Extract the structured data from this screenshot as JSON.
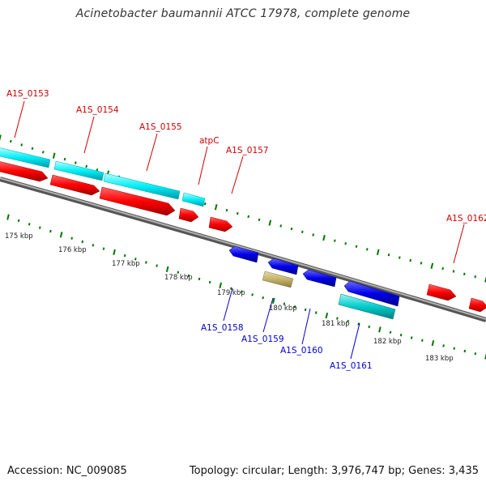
{
  "title": "Acinetobacter baumannii ATCC 17978, complete genome",
  "footer": {
    "accession": "Accession: NC_009085",
    "topology": "Topology: circular; Length: 3,976,747 bp; Genes: 3,435"
  },
  "colors": {
    "plus_cds": "#ff0000",
    "plus_rna": "#00e8f0",
    "minus_cds": "#0000e0",
    "minus_rna": "#00c8c8",
    "pseudo": "#c8b870",
    "plus_label": "#cc0000",
    "minus_label": "#0000cc",
    "tick": "#007700",
    "backbone": "#8c8c8c"
  },
  "scale_labels": [
    "175 kbp",
    "176 kbp",
    "177 kbp",
    "178 kbp",
    "179 kbp",
    "180 kbp",
    "181 kbp",
    "182 kbp",
    "183 kbp"
  ],
  "plus_genes": [
    "A1S_0153",
    "A1S_0154",
    "A1S_0155",
    "atpC",
    "A1S_0157",
    "A1S_0162"
  ],
  "minus_genes": [
    "A1S_0158",
    "A1S_0159",
    "A1S_0160",
    "A1S_0161"
  ]
}
